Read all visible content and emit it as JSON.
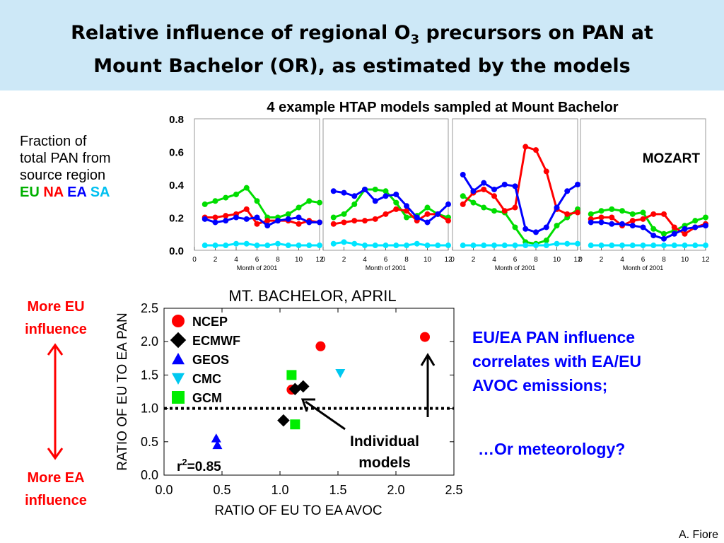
{
  "title": {
    "line1_a": "Relative influence of regional O",
    "line1_sub": "3",
    "line1_b": " precursors on PAN at",
    "line2": "Mount Bachelor (OR), as estimated by the models"
  },
  "left_label": {
    "line1": "Fraction of",
    "line2": "total PAN from",
    "line3": "source region",
    "eu": "EU",
    "na": "NA",
    "ea": "EA",
    "sa": "SA"
  },
  "more_eu": {
    "line1": "More EU",
    "line2": "influence"
  },
  "more_ea": {
    "line1": "More EA",
    "line2": "influence"
  },
  "right_text": {
    "line1": "EU/EA PAN influence",
    "line2": "correlates with EA/EU",
    "line3": "AVOC emissions;",
    "meteorology": "…Or meteorology?"
  },
  "individual": {
    "line1": "Individual",
    "line2": "models"
  },
  "credit": "A. Fiore",
  "colors": {
    "EU": "#00dd00",
    "NA": "#ff0000",
    "EA": "#0000ff",
    "SA": "#00e5ff",
    "title_bg": "#cde8f7"
  },
  "chart_data": [
    {
      "type": "line",
      "title": "4 example HTAP models sampled at Mount Bachelor",
      "xlabel": "Month of 2001",
      "ylabel": "",
      "ylim": [
        0,
        0.8
      ],
      "xlim": [
        0,
        12
      ],
      "yticks": [
        "0.0",
        "0.2",
        "0.4",
        "0.6",
        "0.8"
      ],
      "xticks": [
        "0",
        "2",
        "4",
        "6",
        "8",
        "10",
        "12"
      ],
      "x": [
        1,
        2,
        3,
        4,
        5,
        6,
        7,
        8,
        9,
        10,
        11,
        12
      ],
      "panels": [
        {
          "label": "",
          "series": [
            {
              "name": "EU",
              "values": [
                0.28,
                0.3,
                0.32,
                0.34,
                0.38,
                0.3,
                0.2,
                0.2,
                0.22,
                0.26,
                0.3,
                0.29
              ]
            },
            {
              "name": "NA",
              "values": [
                0.2,
                0.2,
                0.21,
                0.22,
                0.25,
                0.16,
                0.18,
                0.18,
                0.18,
                0.16,
                0.18,
                0.17
              ]
            },
            {
              "name": "EA",
              "values": [
                0.19,
                0.17,
                0.18,
                0.2,
                0.19,
                0.2,
                0.15,
                0.18,
                0.19,
                0.2,
                0.17,
                0.17
              ]
            },
            {
              "name": "SA",
              "values": [
                0.03,
                0.03,
                0.03,
                0.04,
                0.04,
                0.03,
                0.03,
                0.04,
                0.03,
                0.03,
                0.03,
                0.03
              ]
            }
          ]
        },
        {
          "label": "",
          "series": [
            {
              "name": "EU",
              "values": [
                0.2,
                0.22,
                0.28,
                0.37,
                0.37,
                0.36,
                0.29,
                0.2,
                0.21,
                0.26,
                0.22,
                0.2
              ]
            },
            {
              "name": "NA",
              "values": [
                0.16,
                0.17,
                0.18,
                0.18,
                0.19,
                0.22,
                0.25,
                0.24,
                0.18,
                0.22,
                0.22,
                0.18
              ]
            },
            {
              "name": "EA",
              "values": [
                0.36,
                0.35,
                0.33,
                0.37,
                0.3,
                0.33,
                0.34,
                0.27,
                0.2,
                0.17,
                0.22,
                0.28
              ]
            },
            {
              "name": "SA",
              "values": [
                0.04,
                0.05,
                0.04,
                0.03,
                0.03,
                0.03,
                0.03,
                0.03,
                0.04,
                0.03,
                0.03,
                0.03
              ]
            }
          ]
        },
        {
          "label": "",
          "series": [
            {
              "name": "EU",
              "values": [
                0.33,
                0.29,
                0.26,
                0.24,
                0.23,
                0.14,
                0.05,
                0.04,
                0.06,
                0.15,
                0.2,
                0.25
              ]
            },
            {
              "name": "NA",
              "values": [
                0.28,
                0.35,
                0.37,
                0.33,
                0.24,
                0.26,
                0.63,
                0.61,
                0.48,
                0.25,
                0.22,
                0.23
              ]
            },
            {
              "name": "EA",
              "values": [
                0.46,
                0.36,
                0.41,
                0.37,
                0.4,
                0.39,
                0.13,
                0.11,
                0.14,
                0.26,
                0.36,
                0.4
              ]
            },
            {
              "name": "SA",
              "values": [
                0.03,
                0.03,
                0.03,
                0.03,
                0.03,
                0.03,
                0.03,
                0.03,
                0.03,
                0.04,
                0.04,
                0.04
              ]
            }
          ]
        },
        {
          "label": "MOZART",
          "series": [
            {
              "name": "EU",
              "values": [
                0.22,
                0.24,
                0.25,
                0.24,
                0.22,
                0.23,
                0.13,
                0.1,
                0.12,
                0.15,
                0.18,
                0.2
              ]
            },
            {
              "name": "NA",
              "values": [
                0.19,
                0.2,
                0.2,
                0.15,
                0.18,
                0.19,
                0.22,
                0.22,
                0.14,
                0.1,
                0.14,
                0.16
              ]
            },
            {
              "name": "EA",
              "values": [
                0.17,
                0.17,
                0.16,
                0.16,
                0.15,
                0.14,
                0.09,
                0.07,
                0.1,
                0.13,
                0.14,
                0.15
              ]
            },
            {
              "name": "SA",
              "values": [
                0.03,
                0.03,
                0.03,
                0.03,
                0.03,
                0.03,
                0.03,
                0.03,
                0.03,
                0.03,
                0.03,
                0.03
              ]
            }
          ]
        }
      ]
    },
    {
      "type": "scatter",
      "title": "MT. BACHELOR, APRIL",
      "xlabel": "RATIO OF EU TO EA AVOC",
      "ylabel": "RATIO OF EU TO EA PAN",
      "xlim": [
        0,
        2.5
      ],
      "ylim": [
        0,
        2.5
      ],
      "xticks": [
        "0.0",
        "0.5",
        "1.0",
        "1.5",
        "2.0",
        "2.5"
      ],
      "yticks": [
        "0.0",
        "0.5",
        "1.0",
        "1.5",
        "2.0",
        "2.5"
      ],
      "reference_line": 1.0,
      "annotation": {
        "r_label": "r",
        "r_sup": "2",
        "r_value": "=0.85"
      },
      "legend_position": "top-left",
      "series": [
        {
          "name": "NCEP",
          "marker": "circle",
          "color": "#ff0000",
          "points": [
            [
              1.35,
              1.93
            ],
            [
              2.25,
              2.07
            ],
            [
              1.1,
              1.28
            ]
          ]
        },
        {
          "name": "ECMWF",
          "marker": "diamond",
          "color": "#000000",
          "points": [
            [
              1.03,
              0.82
            ],
            [
              1.13,
              1.29
            ],
            [
              1.2,
              1.33
            ]
          ]
        },
        {
          "name": "GEOS",
          "marker": "triangle-up",
          "color": "#0000ff",
          "points": [
            [
              0.45,
              0.55
            ],
            [
              0.46,
              0.45
            ]
          ]
        },
        {
          "name": "CMC",
          "marker": "triangle-down",
          "color": "#00c8f0",
          "points": [
            [
              1.52,
              1.53
            ]
          ]
        },
        {
          "name": "GCM",
          "marker": "square",
          "color": "#00ee00",
          "points": [
            [
              1.1,
              1.5
            ],
            [
              1.13,
              0.76
            ]
          ]
        }
      ]
    }
  ]
}
